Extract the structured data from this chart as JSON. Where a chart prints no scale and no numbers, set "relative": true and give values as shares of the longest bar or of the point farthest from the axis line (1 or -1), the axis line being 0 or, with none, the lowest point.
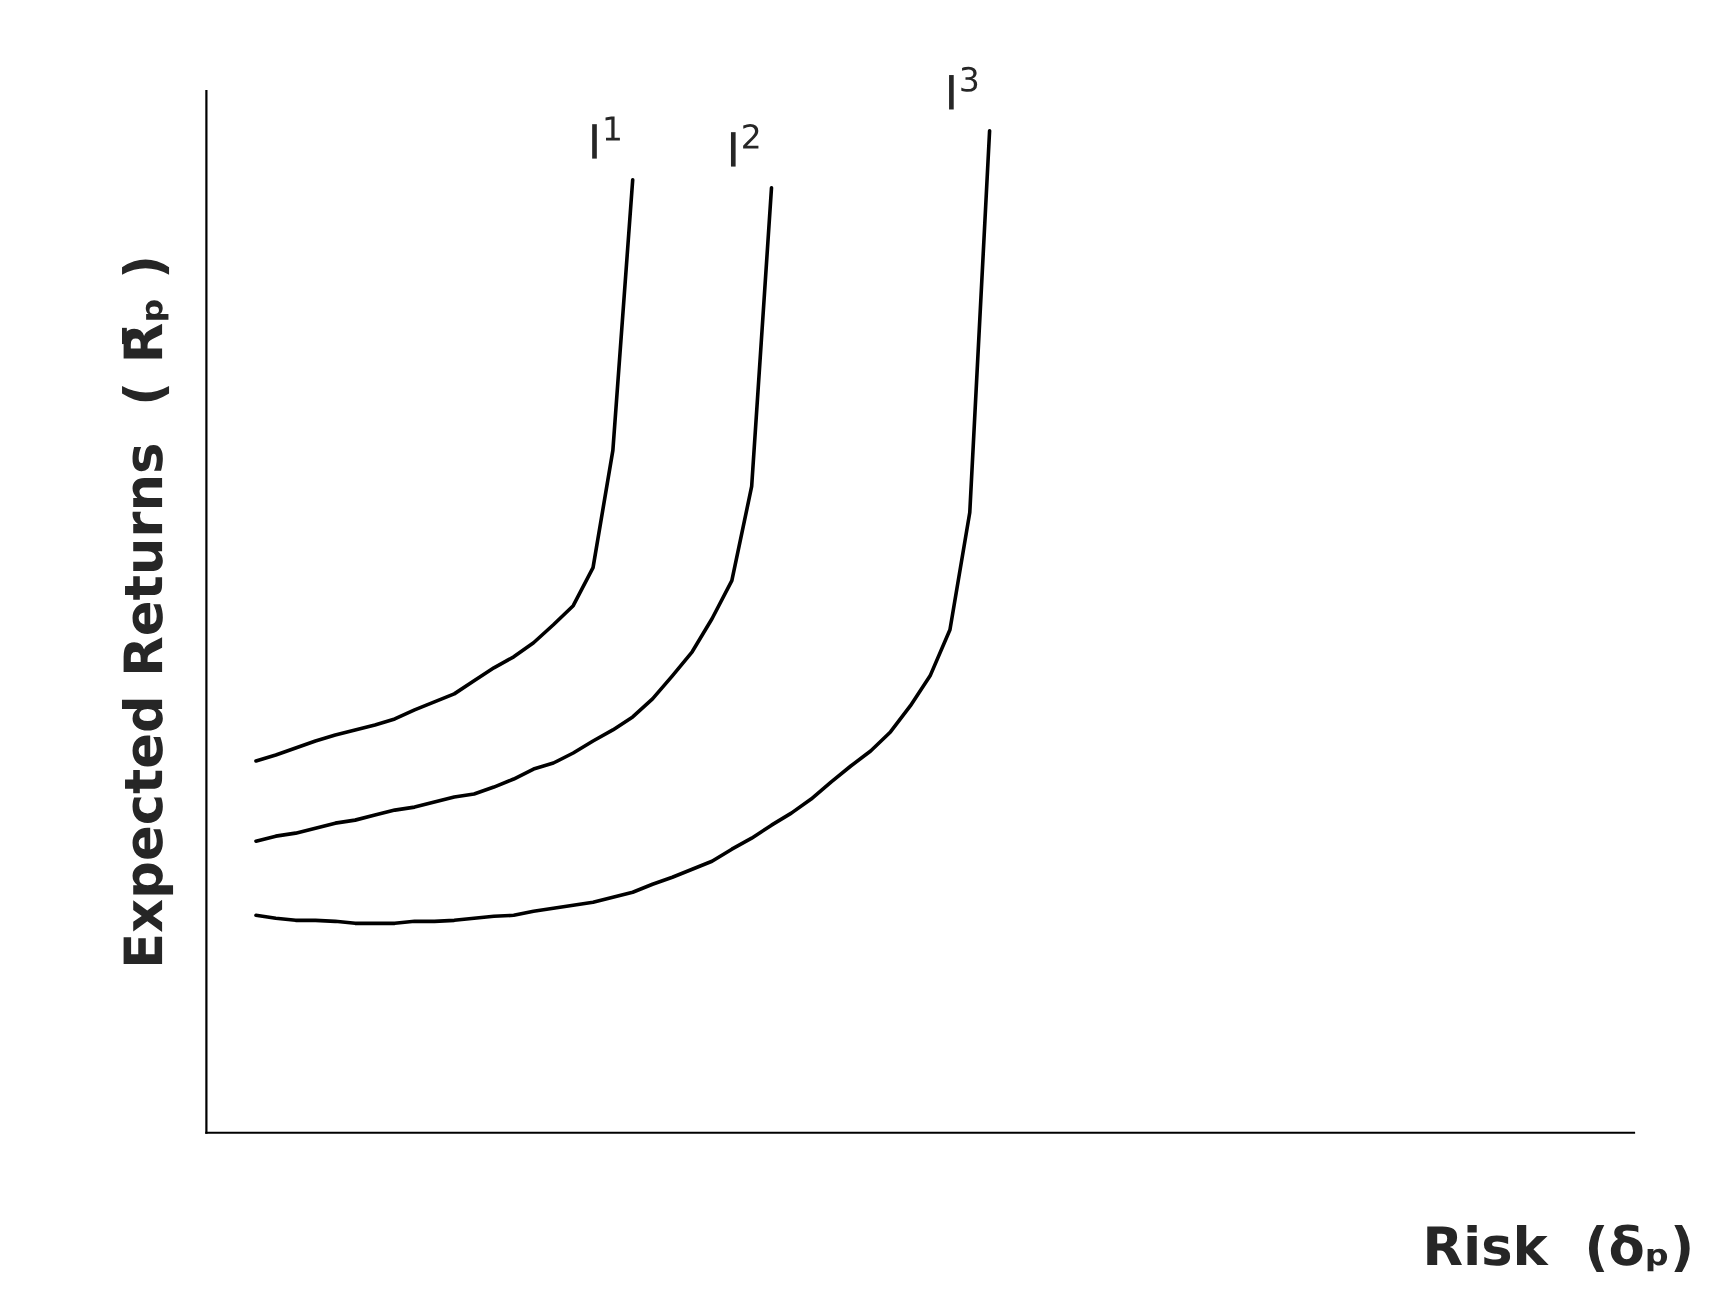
{
  "chart_data": {
    "type": "line",
    "relative": true,
    "xlabel": "Risk  (δₚ)",
    "ylabel": "Expected Returns  ( R̄ₚ )",
    "line_style": "solid",
    "categories": [
      null,
      null,
      null,
      null,
      null,
      null,
      null,
      null,
      null,
      null,
      null,
      null,
      null,
      null,
      null,
      null,
      null,
      null,
      null,
      null,
      null,
      null,
      null,
      null,
      null,
      null,
      null,
      null,
      null,
      null,
      null,
      null,
      null,
      null,
      null,
      null,
      null,
      null,
      null,
      null,
      null,
      null,
      null,
      null,
      null,
      null,
      null,
      null,
      null,
      null,
      null,
      null,
      null,
      null,
      null,
      null,
      null,
      null,
      null,
      null,
      null,
      null,
      null,
      null,
      null,
      null,
      null,
      null,
      null,
      null,
      null,
      null
    ],
    "series": [
      {
        "name": "I$^{1}$",
        "color": "#000000",
        "values": [
          null,
          null,
          0.371,
          0.377,
          0.384,
          0.391,
          0.397,
          0.402,
          0.407,
          0.413,
          0.422,
          0.43,
          0.438,
          0.451,
          0.464,
          0.475,
          0.489,
          0.507,
          0.526,
          0.564,
          0.681,
          0.951,
          null,
          null,
          null,
          null,
          null,
          null,
          null,
          null,
          null,
          null,
          null,
          null,
          null,
          null,
          null,
          null,
          null,
          null,
          null,
          null,
          null,
          null,
          null,
          null,
          null,
          null,
          null,
          null,
          null,
          null,
          null,
          null,
          null,
          null,
          null,
          null,
          null,
          null,
          null,
          null,
          null,
          null,
          null,
          null,
          null,
          null,
          null,
          null,
          null,
          null
        ]
      },
      {
        "name": "I$^{2}$",
        "color": "#000000",
        "values": [
          null,
          null,
          0.291,
          0.296,
          0.299,
          0.304,
          0.309,
          0.312,
          0.317,
          0.322,
          0.325,
          0.33,
          0.335,
          0.338,
          0.345,
          0.353,
          0.363,
          0.369,
          0.379,
          0.391,
          0.402,
          0.415,
          0.433,
          0.456,
          0.48,
          0.513,
          0.551,
          0.645,
          0.943,
          null,
          null,
          null,
          null,
          null,
          null,
          null,
          null,
          null,
          null,
          null,
          null,
          null,
          null,
          null,
          null,
          null,
          null,
          null,
          null,
          null,
          null,
          null,
          null,
          null,
          null,
          null,
          null,
          null,
          null,
          null,
          null,
          null,
          null,
          null,
          null,
          null,
          null,
          null,
          null,
          null,
          null,
          null
        ]
      },
      {
        "name": "I$^{3}$",
        "color": "#000000",
        "values": [
          null,
          null,
          0.217,
          0.214,
          0.212,
          0.212,
          0.211,
          0.209,
          0.209,
          0.209,
          0.211,
          0.211,
          0.212,
          0.214,
          0.216,
          0.217,
          0.221,
          0.224,
          0.227,
          0.23,
          0.235,
          0.24,
          0.248,
          0.255,
          0.263,
          0.271,
          0.283,
          0.294,
          0.307,
          0.319,
          0.333,
          0.35,
          0.366,
          0.381,
          0.4,
          0.426,
          0.456,
          0.502,
          0.619,
          1.0,
          null,
          null,
          null,
          null,
          null,
          null,
          null,
          null,
          null,
          null,
          null,
          null,
          null,
          null,
          null,
          null,
          null,
          null,
          null,
          null,
          null,
          null,
          null,
          null,
          null,
          null,
          null,
          null,
          null,
          null,
          null,
          null
        ]
      }
    ]
  }
}
